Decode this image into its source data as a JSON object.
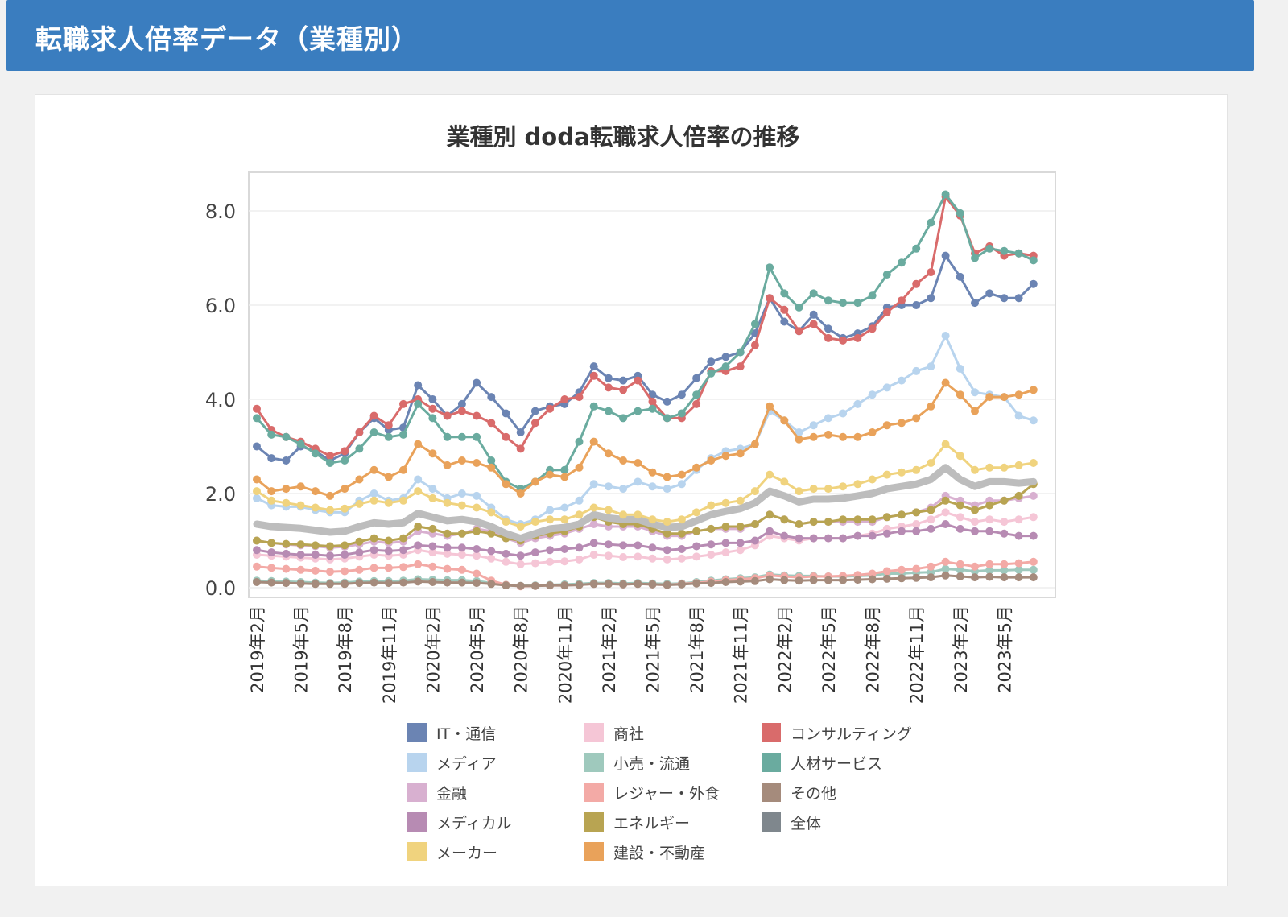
{
  "header": {
    "title": "転職求人倍率データ（業種別）"
  },
  "chart_data": {
    "type": "line",
    "title": "業種別  doda転職求人倍率の推移",
    "xlabel": "",
    "ylabel": "",
    "ylim": [
      0,
      8.5
    ],
    "yticks": [
      "0.0",
      "2.0",
      "4.0",
      "6.0",
      "8.0"
    ],
    "grid": true,
    "legend_position": "bottom",
    "x": [
      "2019年2月",
      "2019年3月",
      "2019年4月",
      "2019年5月",
      "2019年6月",
      "2019年7月",
      "2019年8月",
      "2019年9月",
      "2019年10月",
      "2019年11月",
      "2019年12月",
      "2020年1月",
      "2020年2月",
      "2020年3月",
      "2020年4月",
      "2020年5月",
      "2020年6月",
      "2020年7月",
      "2020年8月",
      "2020年9月",
      "2020年10月",
      "2020年11月",
      "2020年12月",
      "2021年1月",
      "2021年2月",
      "2021年3月",
      "2021年4月",
      "2021年5月",
      "2021年6月",
      "2021年7月",
      "2021年8月",
      "2021年9月",
      "2021年10月",
      "2021年11月",
      "2021年12月",
      "2022年1月",
      "2022年2月",
      "2022年3月",
      "2022年4月",
      "2022年5月",
      "2022年6月",
      "2022年7月",
      "2022年8月",
      "2022年9月",
      "2022年10月",
      "2022年11月",
      "2022年12月",
      "2023年1月",
      "2023年2月",
      "2023年3月",
      "2023年4月",
      "2023年5月",
      "2023年6月",
      "2023年7月",
      "2023年8月"
    ],
    "xtick_labels": [
      "2019年2月",
      "2019年5月",
      "2019年8月",
      "2019年11月",
      "2020年2月",
      "2020年5月",
      "2020年8月",
      "2020年11月",
      "2021年2月",
      "2021年5月",
      "2021年8月",
      "2021年11月",
      "2022年2月",
      "2022年5月",
      "2022年8月",
      "2022年11月",
      "2023年2月",
      "2023年5月"
    ],
    "series": [
      {
        "name": "IT・通信",
        "color": "#6b84b3",
        "values": [
          3.0,
          2.75,
          2.7,
          3.0,
          2.9,
          2.7,
          2.85,
          3.3,
          3.6,
          3.35,
          3.4,
          4.3,
          4.0,
          3.65,
          3.9,
          4.35,
          4.05,
          3.7,
          3.3,
          3.75,
          3.85,
          3.9,
          4.15,
          4.7,
          4.45,
          4.4,
          4.5,
          4.1,
          3.95,
          4.1,
          4.45,
          4.8,
          4.9,
          5.0,
          5.4,
          6.15,
          5.65,
          5.45,
          5.8,
          5.5,
          5.3,
          5.4,
          5.55,
          5.95,
          6.0,
          6.0,
          6.15,
          7.05,
          6.6,
          6.05,
          6.25,
          6.15,
          6.15,
          6.45,
          null
        ]
      },
      {
        "name": "商社",
        "color": "#f5c6d6",
        "values": [
          0.7,
          0.68,
          0.66,
          0.64,
          0.62,
          0.6,
          0.62,
          0.66,
          0.7,
          0.68,
          0.7,
          0.8,
          0.75,
          0.72,
          0.7,
          0.68,
          0.62,
          0.55,
          0.5,
          0.52,
          0.55,
          0.56,
          0.6,
          0.7,
          0.68,
          0.65,
          0.66,
          0.62,
          0.6,
          0.62,
          0.66,
          0.7,
          0.75,
          0.8,
          0.9,
          1.1,
          1.05,
          1.0,
          1.05,
          1.05,
          1.05,
          1.1,
          1.15,
          1.25,
          1.3,
          1.35,
          1.45,
          1.6,
          1.5,
          1.4,
          1.45,
          1.4,
          1.45,
          1.5,
          null
        ]
      },
      {
        "name": "コンサルティング",
        "color": "#d96b6b",
        "values": [
          3.8,
          3.35,
          3.2,
          3.1,
          2.95,
          2.8,
          2.9,
          3.3,
          3.65,
          3.45,
          3.9,
          4.0,
          3.8,
          3.65,
          3.75,
          3.65,
          3.5,
          3.2,
          2.95,
          3.5,
          3.8,
          4.0,
          4.05,
          4.5,
          4.25,
          4.2,
          4.4,
          3.95,
          3.6,
          3.6,
          3.9,
          4.6,
          4.6,
          4.7,
          5.15,
          6.15,
          5.9,
          5.45,
          5.6,
          5.3,
          5.25,
          5.3,
          5.5,
          5.85,
          6.1,
          6.45,
          6.7,
          8.3,
          7.9,
          7.1,
          7.25,
          7.05,
          7.1,
          7.05,
          null
        ]
      },
      {
        "name": "メディア",
        "color": "#b8d4ee",
        "values": [
          1.9,
          1.75,
          1.72,
          1.72,
          1.65,
          1.6,
          1.6,
          1.85,
          2.0,
          1.85,
          1.9,
          2.3,
          2.1,
          1.9,
          2.0,
          1.95,
          1.7,
          1.45,
          1.35,
          1.45,
          1.65,
          1.7,
          1.85,
          2.2,
          2.15,
          2.1,
          2.25,
          2.15,
          2.1,
          2.2,
          2.5,
          2.75,
          2.9,
          2.95,
          3.05,
          3.75,
          3.55,
          3.3,
          3.45,
          3.6,
          3.7,
          3.9,
          4.1,
          4.25,
          4.4,
          4.6,
          4.7,
          5.35,
          4.65,
          4.15,
          4.1,
          4.05,
          3.65,
          3.55,
          null
        ]
      },
      {
        "name": "小売・流通",
        "color": "#9fc9bd",
        "values": [
          0.15,
          0.14,
          0.13,
          0.12,
          0.11,
          0.1,
          0.11,
          0.13,
          0.14,
          0.14,
          0.15,
          0.18,
          0.17,
          0.16,
          0.16,
          0.14,
          0.1,
          0.06,
          0.04,
          0.05,
          0.06,
          0.07,
          0.08,
          0.1,
          0.1,
          0.09,
          0.1,
          0.09,
          0.08,
          0.09,
          0.12,
          0.15,
          0.18,
          0.2,
          0.22,
          0.28,
          0.26,
          0.25,
          0.25,
          0.24,
          0.24,
          0.25,
          0.26,
          0.3,
          0.3,
          0.32,
          0.33,
          0.4,
          0.38,
          0.35,
          0.37,
          0.37,
          0.38,
          0.38,
          null
        ]
      },
      {
        "name": "人材サービス",
        "color": "#6aab9f",
        "values": [
          3.6,
          3.25,
          3.2,
          3.05,
          2.85,
          2.65,
          2.7,
          2.95,
          3.3,
          3.2,
          3.25,
          3.9,
          3.6,
          3.2,
          3.2,
          3.2,
          2.7,
          2.25,
          2.1,
          2.25,
          2.5,
          2.5,
          3.1,
          3.85,
          3.75,
          3.6,
          3.75,
          3.8,
          3.6,
          3.7,
          4.1,
          4.55,
          4.7,
          5.0,
          5.6,
          6.8,
          6.25,
          5.95,
          6.25,
          6.1,
          6.05,
          6.05,
          6.2,
          6.65,
          6.9,
          7.2,
          7.75,
          8.35,
          7.95,
          7.0,
          7.2,
          7.15,
          7.1,
          6.95,
          null
        ]
      },
      {
        "name": "金融",
        "color": "#d8b0d0",
        "values": [
          1.0,
          0.95,
          0.92,
          0.9,
          0.88,
          0.85,
          0.87,
          0.92,
          0.98,
          0.95,
          0.98,
          1.2,
          1.15,
          1.1,
          1.15,
          1.25,
          1.2,
          1.05,
          0.95,
          1.05,
          1.1,
          1.15,
          1.25,
          1.35,
          1.3,
          1.3,
          1.3,
          1.2,
          1.1,
          1.1,
          1.2,
          1.25,
          1.25,
          1.25,
          1.35,
          1.55,
          1.45,
          1.35,
          1.4,
          1.4,
          1.4,
          1.4,
          1.4,
          1.5,
          1.55,
          1.6,
          1.7,
          1.95,
          1.85,
          1.75,
          1.85,
          1.85,
          1.9,
          1.95,
          null
        ]
      },
      {
        "name": "レジャー・外食",
        "color": "#f3aaa6",
        "values": [
          0.45,
          0.42,
          0.4,
          0.38,
          0.36,
          0.34,
          0.35,
          0.38,
          0.42,
          0.42,
          0.44,
          0.5,
          0.45,
          0.4,
          0.38,
          0.3,
          0.15,
          0.06,
          0.03,
          0.04,
          0.05,
          0.05,
          0.06,
          0.08,
          0.08,
          0.07,
          0.08,
          0.07,
          0.06,
          0.08,
          0.1,
          0.13,
          0.16,
          0.18,
          0.2,
          0.26,
          0.24,
          0.22,
          0.24,
          0.24,
          0.25,
          0.27,
          0.3,
          0.35,
          0.38,
          0.4,
          0.45,
          0.55,
          0.5,
          0.45,
          0.5,
          0.5,
          0.52,
          0.55,
          null
        ]
      },
      {
        "name": "その他",
        "color": "#a58b7c",
        "values": [
          0.12,
          0.11,
          0.1,
          0.09,
          0.08,
          0.08,
          0.08,
          0.1,
          0.11,
          0.1,
          0.11,
          0.13,
          0.12,
          0.11,
          0.11,
          0.1,
          0.08,
          0.05,
          0.04,
          0.04,
          0.05,
          0.05,
          0.06,
          0.08,
          0.08,
          0.07,
          0.08,
          0.07,
          0.06,
          0.07,
          0.09,
          0.1,
          0.12,
          0.13,
          0.14,
          0.18,
          0.16,
          0.15,
          0.16,
          0.16,
          0.16,
          0.17,
          0.18,
          0.19,
          0.2,
          0.21,
          0.22,
          0.26,
          0.24,
          0.22,
          0.23,
          0.22,
          0.22,
          0.22,
          null
        ]
      },
      {
        "name": "メディカル",
        "color": "#b78bb3",
        "values": [
          0.8,
          0.75,
          0.72,
          0.7,
          0.7,
          0.68,
          0.7,
          0.75,
          0.8,
          0.78,
          0.8,
          0.9,
          0.88,
          0.85,
          0.85,
          0.82,
          0.78,
          0.72,
          0.68,
          0.75,
          0.8,
          0.82,
          0.85,
          0.95,
          0.92,
          0.9,
          0.9,
          0.85,
          0.8,
          0.82,
          0.88,
          0.92,
          0.95,
          0.95,
          1.0,
          1.2,
          1.1,
          1.05,
          1.05,
          1.05,
          1.05,
          1.1,
          1.1,
          1.15,
          1.2,
          1.2,
          1.25,
          1.35,
          1.25,
          1.2,
          1.2,
          1.15,
          1.1,
          1.1,
          null
        ]
      },
      {
        "name": "エネルギー",
        "color": "#b8a452",
        "values": [
          1.0,
          0.95,
          0.93,
          0.92,
          0.9,
          0.88,
          0.9,
          0.98,
          1.05,
          1.0,
          1.05,
          1.3,
          1.25,
          1.15,
          1.15,
          1.2,
          1.15,
          1.05,
          1.0,
          1.1,
          1.15,
          1.2,
          1.3,
          1.5,
          1.4,
          1.35,
          1.35,
          1.25,
          1.15,
          1.15,
          1.2,
          1.25,
          1.3,
          1.3,
          1.35,
          1.55,
          1.45,
          1.35,
          1.4,
          1.4,
          1.45,
          1.45,
          1.45,
          1.5,
          1.55,
          1.6,
          1.65,
          1.85,
          1.75,
          1.65,
          1.75,
          1.85,
          1.95,
          2.2,
          null
        ]
      },
      {
        "name": "全体",
        "color": "#bdbdbd",
        "values": [
          1.35,
          1.3,
          1.28,
          1.26,
          1.22,
          1.18,
          1.2,
          1.3,
          1.38,
          1.35,
          1.38,
          1.58,
          1.5,
          1.42,
          1.45,
          1.4,
          1.3,
          1.15,
          1.05,
          1.15,
          1.25,
          1.28,
          1.35,
          1.55,
          1.48,
          1.45,
          1.45,
          1.35,
          1.28,
          1.3,
          1.42,
          1.55,
          1.62,
          1.68,
          1.8,
          2.05,
          1.95,
          1.82,
          1.88,
          1.88,
          1.9,
          1.95,
          2.0,
          2.1,
          2.15,
          2.2,
          2.3,
          2.55,
          2.3,
          2.15,
          2.25,
          2.25,
          2.22,
          2.25,
          null
        ]
      },
      {
        "name": "メーカー",
        "color": "#f0d37e",
        "values": [
          2.05,
          1.85,
          1.8,
          1.75,
          1.7,
          1.65,
          1.68,
          1.78,
          1.85,
          1.8,
          1.85,
          2.05,
          1.9,
          1.8,
          1.75,
          1.7,
          1.6,
          1.4,
          1.3,
          1.4,
          1.45,
          1.45,
          1.55,
          1.7,
          1.65,
          1.55,
          1.55,
          1.45,
          1.4,
          1.45,
          1.6,
          1.75,
          1.8,
          1.85,
          2.05,
          2.4,
          2.25,
          2.05,
          2.1,
          2.1,
          2.15,
          2.2,
          2.3,
          2.4,
          2.45,
          2.5,
          2.65,
          3.05,
          2.8,
          2.5,
          2.55,
          2.55,
          2.6,
          2.65,
          null
        ]
      },
      {
        "name": "建設・不動産",
        "color": "#e9a25a",
        "values": [
          2.3,
          2.05,
          2.1,
          2.15,
          2.05,
          1.95,
          2.1,
          2.3,
          2.5,
          2.35,
          2.5,
          3.05,
          2.85,
          2.6,
          2.7,
          2.65,
          2.55,
          2.2,
          2.0,
          2.25,
          2.4,
          2.35,
          2.55,
          3.1,
          2.85,
          2.7,
          2.65,
          2.45,
          2.35,
          2.4,
          2.55,
          2.7,
          2.8,
          2.85,
          3.05,
          3.85,
          3.55,
          3.15,
          3.2,
          3.25,
          3.2,
          3.2,
          3.3,
          3.45,
          3.5,
          3.6,
          3.85,
          4.35,
          4.1,
          3.75,
          4.05,
          4.05,
          4.1,
          4.2,
          null
        ]
      }
    ]
  },
  "legend": {
    "items": [
      {
        "label": "IT・通信",
        "color": "#6b84b3"
      },
      {
        "label": "商社",
        "color": "#f5c6d6"
      },
      {
        "label": "コンサルティング",
        "color": "#d96b6b"
      },
      {
        "label": "メディア",
        "color": "#b8d4ee"
      },
      {
        "label": "小売・流通",
        "color": "#9fc9bd"
      },
      {
        "label": "人材サービス",
        "color": "#6aab9f"
      },
      {
        "label": "金融",
        "color": "#d8b0d0"
      },
      {
        "label": "レジャー・外食",
        "color": "#f3aaa6"
      },
      {
        "label": "その他",
        "color": "#a58b7c"
      },
      {
        "label": "メディカル",
        "color": "#b78bb3"
      },
      {
        "label": "エネルギー",
        "color": "#b8a452"
      },
      {
        "label": "全体",
        "color": "#7f878d"
      },
      {
        "label": "メーカー",
        "color": "#f0d37e"
      },
      {
        "label": "建設・不動産",
        "color": "#e9a25a"
      }
    ]
  }
}
